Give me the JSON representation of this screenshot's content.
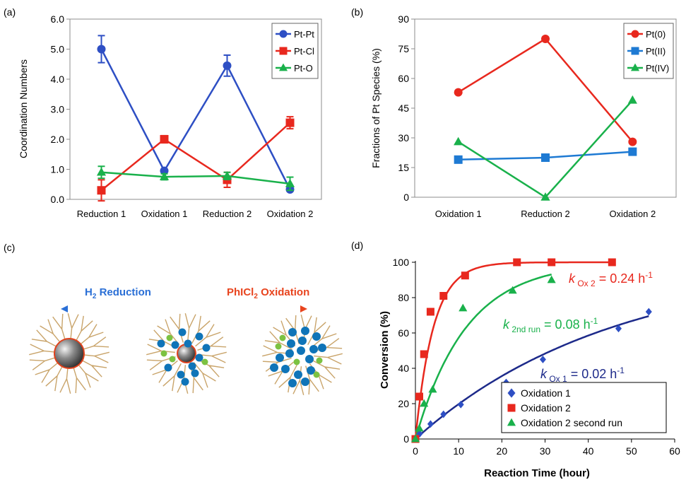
{
  "colors": {
    "blue": "#2e4fc4",
    "red": "#e8281e",
    "green": "#19b14b",
    "lightblue": "#1e7ad3",
    "navy": "#1d2a8a",
    "arrow_start": "#2a6fd6",
    "arrow_end": "#e8441e",
    "dendrimer": "#c9a46a",
    "particle_ring": "#e0411c",
    "dot_blue": "#0f74b8",
    "dot_green": "#7cc242"
  },
  "panels": {
    "a": {
      "label": "(a)"
    },
    "b": {
      "label": "(b)"
    },
    "c": {
      "label": "(c)"
    },
    "d": {
      "label": "(d)"
    }
  },
  "diagram": {
    "left_label_prefix": "H",
    "left_label_sub": "2",
    "left_label_suffix": " Reduction",
    "right_label_prefix": "PhICl",
    "right_label_sub": "2",
    "right_label_suffix": " Oxidation"
  },
  "chart_data": [
    {
      "type": "line",
      "panel": "a",
      "ylabel": "Coordination Numbers",
      "categories": [
        "Reduction  1",
        "Oxidation 1",
        "Reduction 2",
        "Oxidation 2"
      ],
      "ylim": [
        0,
        6
      ],
      "yticks": [
        "0.0",
        "1.0",
        "2.0",
        "3.0",
        "4.0",
        "5.0",
        "6.0"
      ],
      "grid": false,
      "legend_position": "top-right",
      "series": [
        {
          "name": "Pt-Pt",
          "color": "#2e4fc4",
          "marker": "circle",
          "values": [
            5.0,
            0.95,
            4.45,
            0.33
          ],
          "errors": [
            0.45,
            0.0,
            0.35,
            0.0
          ]
        },
        {
          "name": "Pt-Cl",
          "color": "#e8281e",
          "marker": "square",
          "values": [
            0.3,
            2.0,
            0.65,
            2.55
          ],
          "errors": [
            0.35,
            0.12,
            0.25,
            0.2
          ]
        },
        {
          "name": "Pt-O",
          "color": "#19b14b",
          "marker": "triangle",
          "values": [
            0.9,
            0.75,
            0.78,
            0.52
          ],
          "errors": [
            0.2,
            0.1,
            0.12,
            0.22
          ]
        }
      ]
    },
    {
      "type": "line",
      "panel": "b",
      "ylabel": "Fractions of Pt Species (%)",
      "categories": [
        "Oxidation 1",
        "Reduction 2",
        "Oxidation 2"
      ],
      "ylim": [
        0,
        90
      ],
      "yticks": [
        "0",
        "15",
        "30",
        "45",
        "60",
        "75",
        "90"
      ],
      "grid": false,
      "legend_position": "top-right",
      "series": [
        {
          "name": "Pt(0)",
          "color": "#e8281e",
          "marker": "circle",
          "values": [
            53,
            80,
            28
          ]
        },
        {
          "name": "Pt(II)",
          "color": "#1e7ad3",
          "marker": "square",
          "values": [
            19,
            20,
            23
          ]
        },
        {
          "name": "Pt(IV)",
          "color": "#19b14b",
          "marker": "triangle",
          "values": [
            28,
            0,
            49
          ]
        }
      ]
    },
    {
      "type": "scatter",
      "panel": "d",
      "xlabel": "Reaction Time (hour)",
      "ylabel": "Conversion (%)",
      "xlim": [
        0,
        60
      ],
      "ylim": [
        0,
        100
      ],
      "xticks": [
        "0",
        "10",
        "20",
        "30",
        "40",
        "50",
        "60"
      ],
      "yticks": [
        "0",
        "20",
        "40",
        "60",
        "80",
        "100"
      ],
      "grid": false,
      "legend_position": "bottom-right",
      "series": [
        {
          "name": "Oxidation 1",
          "color": "#2e4fc4",
          "line_color": "#1d2a8a",
          "marker": "diamond",
          "rate": 0.022,
          "x": [
            0,
            1,
            3.5,
            6.5,
            10.5,
            21,
            29.5,
            47,
            54
          ],
          "y": [
            0,
            3,
            8.5,
            14,
            19.5,
            32,
            45,
            62.5,
            72
          ]
        },
        {
          "name": "Oxidation 2",
          "color": "#e8281e",
          "line_color": "#e8281e",
          "marker": "square",
          "rate": 0.24,
          "x": [
            0,
            0.9,
            2,
            3.5,
            6.5,
            11.5,
            23.5,
            31.5,
            45.5
          ],
          "y": [
            0,
            24,
            48,
            72,
            81,
            92.5,
            100,
            100,
            100
          ]
        },
        {
          "name": "Oxidation 2 second run",
          "color": "#19b14b",
          "line_color": "#19b14b",
          "marker": "triangle",
          "rate": 0.085,
          "x": [
            0,
            0.9,
            2,
            4,
            11,
            22.5,
            31.5
          ],
          "y": [
            0,
            6,
            20,
            28,
            74,
            84,
            90
          ]
        }
      ],
      "annotations": [
        {
          "k": "k",
          "sub": "Ox 2",
          "text": " = 0.24 h",
          "sup": "-1",
          "color": "#e8281e"
        },
        {
          "k": "k",
          "sub": "2nd run",
          "text": "  = 0.08 h",
          "sup": "-1",
          "color": "#19b14b"
        },
        {
          "k": "k",
          "sub": "Ox 1",
          "text": " = 0.02 h",
          "sup": "-1",
          "color": "#1d2a8a"
        }
      ]
    }
  ]
}
